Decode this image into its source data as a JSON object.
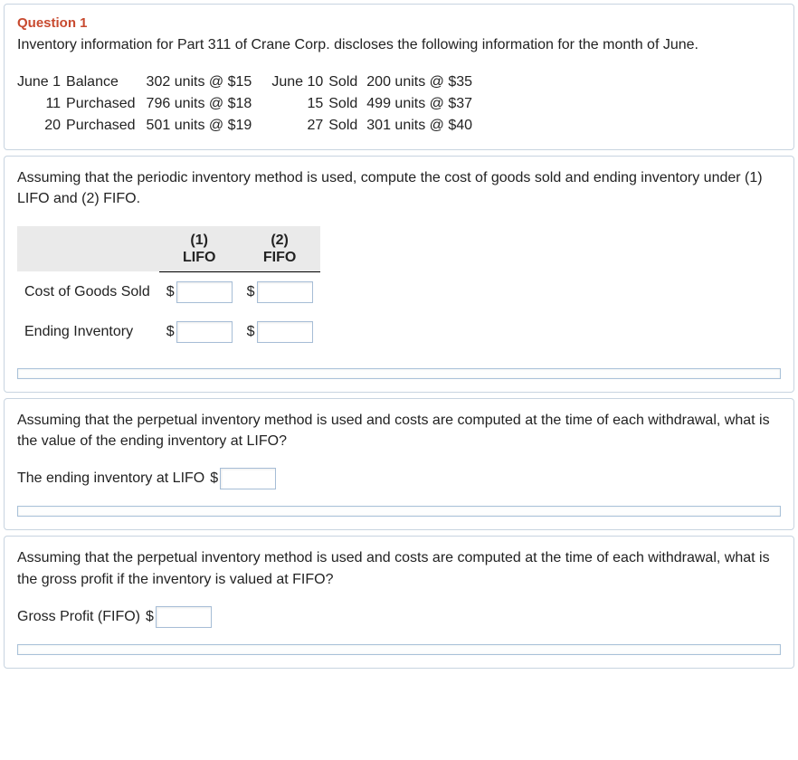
{
  "question": {
    "label": "Question 1",
    "intro": "Inventory information for Part 311 of Crane Corp. discloses the following information for the month of June."
  },
  "inventory_rows": [
    {
      "d1": "June 1",
      "a1": "Balance",
      "u1": "302 units @ $15",
      "d2": "June 10",
      "a2": "Sold",
      "u2": "200 units @ $35"
    },
    {
      "d1": "11",
      "a1": "Purchased",
      "u1": "796 units @ $18",
      "d2": "15",
      "a2": "Sold",
      "u2": "499 units @ $37"
    },
    {
      "d1": "20",
      "a1": "Purchased",
      "u1": "501 units @ $19",
      "d2": "27",
      "a2": "Sold",
      "u2": "301 units @ $40"
    }
  ],
  "part2": {
    "instr": "Assuming that the periodic inventory method is used, compute the cost of goods sold and ending inventory under (1) LIFO and (2) FIFO.",
    "col1_num": "(1)",
    "col1_lbl": "LIFO",
    "col2_num": "(2)",
    "col2_lbl": "FIFO",
    "row1": "Cost of Goods Sold",
    "row2": "Ending Inventory",
    "dollar": "$"
  },
  "part3": {
    "instr": "Assuming that the perpetual inventory method is used and costs are computed at the time of each withdrawal, what is the value of the ending inventory at LIFO?",
    "label": "The ending inventory at LIFO",
    "dollar": "$"
  },
  "part4": {
    "instr": "Assuming that the perpetual inventory method is used and costs are computed at the time of each withdrawal, what is the gross profit if the inventory is valued at FIFO?",
    "label": "Gross Profit (FIFO)",
    "dollar": "$"
  }
}
